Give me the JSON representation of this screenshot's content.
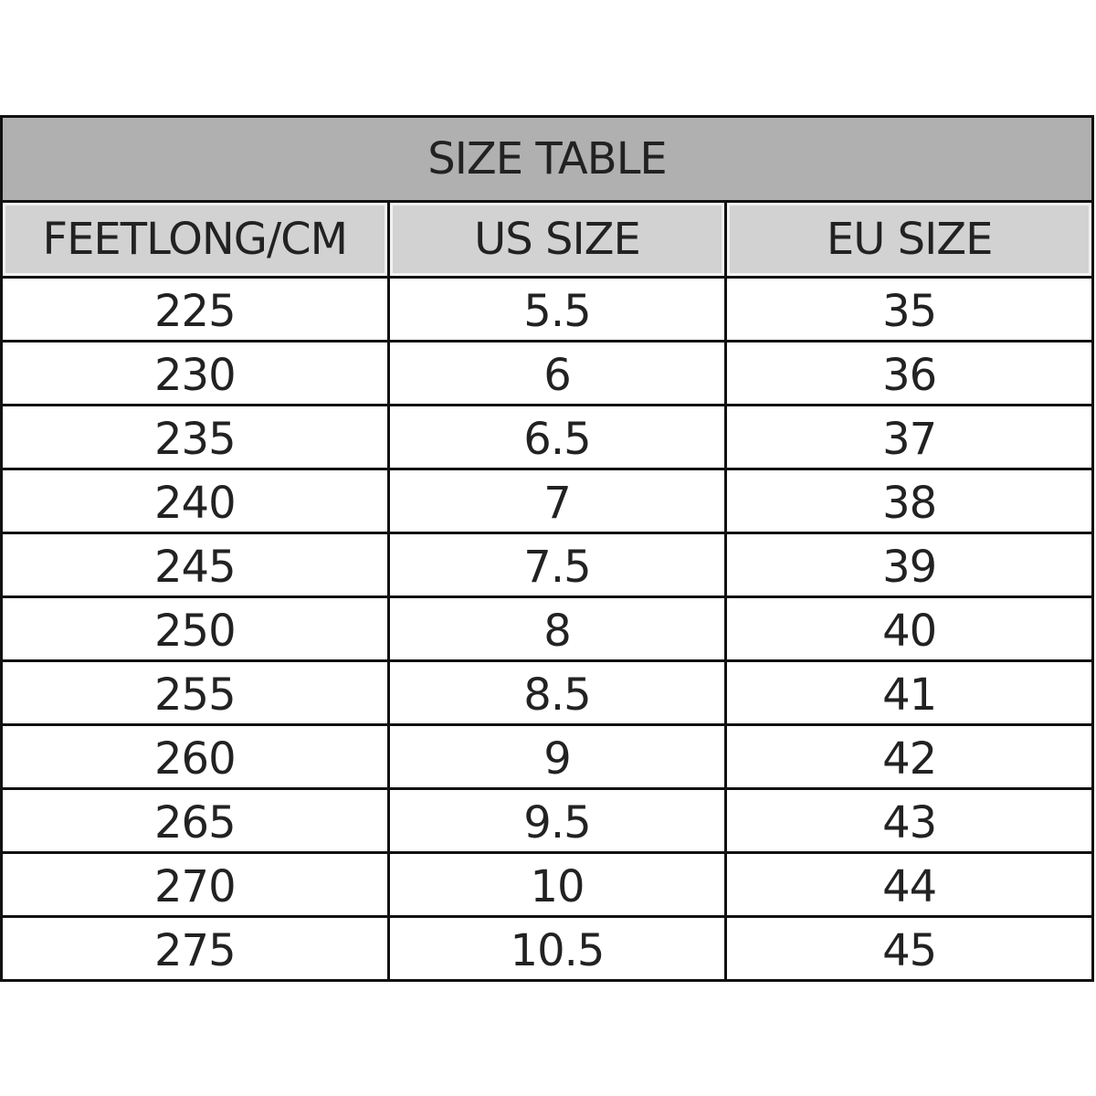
{
  "table": {
    "title": "SIZE TABLE",
    "headers": [
      "FEETLONG/CM",
      "US SIZE",
      "EU SIZE"
    ],
    "rows": [
      [
        "225",
        "5.5",
        "35"
      ],
      [
        "230",
        "6",
        "36"
      ],
      [
        "235",
        "6.5",
        "37"
      ],
      [
        "240",
        "7",
        "38"
      ],
      [
        "245",
        "7.5",
        "39"
      ],
      [
        "250",
        "8",
        "40"
      ],
      [
        "255",
        "8.5",
        "41"
      ],
      [
        "260",
        "9",
        "42"
      ],
      [
        "265",
        "9.5",
        "43"
      ],
      [
        "270",
        "10",
        "44"
      ],
      [
        "275",
        "10.5",
        "45"
      ]
    ],
    "colors": {
      "title_bg": "#b0b0b0",
      "header_bg": "#d2d2d2",
      "border": "#111111"
    }
  }
}
